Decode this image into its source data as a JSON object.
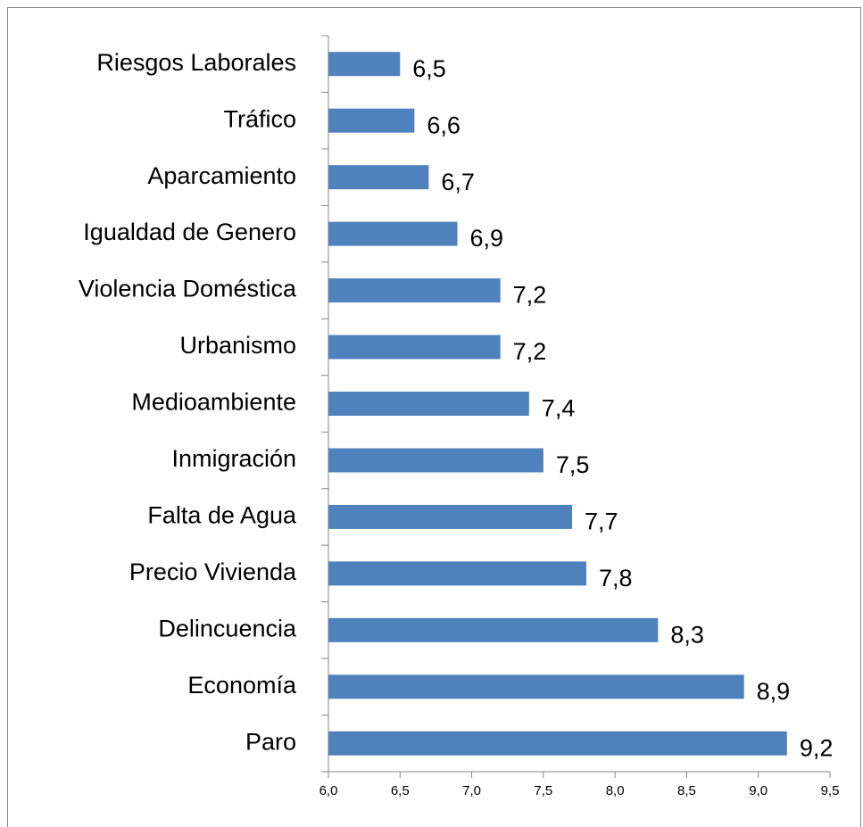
{
  "chart_data": {
    "type": "barh",
    "categories": [
      "Riesgos Laborales",
      "Tráfico",
      "Aparcamiento",
      "Igualdad de Genero",
      "Violencia Doméstica",
      "Urbanismo",
      "Medioambiente",
      "Inmigración",
      "Falta de Agua",
      "Precio Vivienda",
      "Delincuencia",
      "Economía",
      "Paro"
    ],
    "values": [
      6.5,
      6.6,
      6.7,
      6.9,
      7.2,
      7.2,
      7.4,
      7.5,
      7.7,
      7.8,
      8.3,
      8.9,
      9.2
    ],
    "value_labels": [
      "6,5",
      "6,6",
      "6,7",
      "6,9",
      "7,2",
      "7,2",
      "7,4",
      "7,5",
      "7,7",
      "7,8",
      "8,3",
      "8,9",
      "9,2"
    ],
    "color": "#4f81bd",
    "xlim": [
      6.0,
      9.5
    ],
    "xticks": [
      {
        "value": 6.0,
        "label": "6,0"
      },
      {
        "value": 6.5,
        "label": "6,5"
      },
      {
        "value": 7.0,
        "label": "7,0"
      },
      {
        "value": 7.5,
        "label": "7,5"
      },
      {
        "value": 8.0,
        "label": "8,0"
      },
      {
        "value": 8.5,
        "label": "8,5"
      },
      {
        "value": 9.0,
        "label": "9,0"
      },
      {
        "value": 9.5,
        "label": "9,5"
      }
    ],
    "grid": false
  }
}
